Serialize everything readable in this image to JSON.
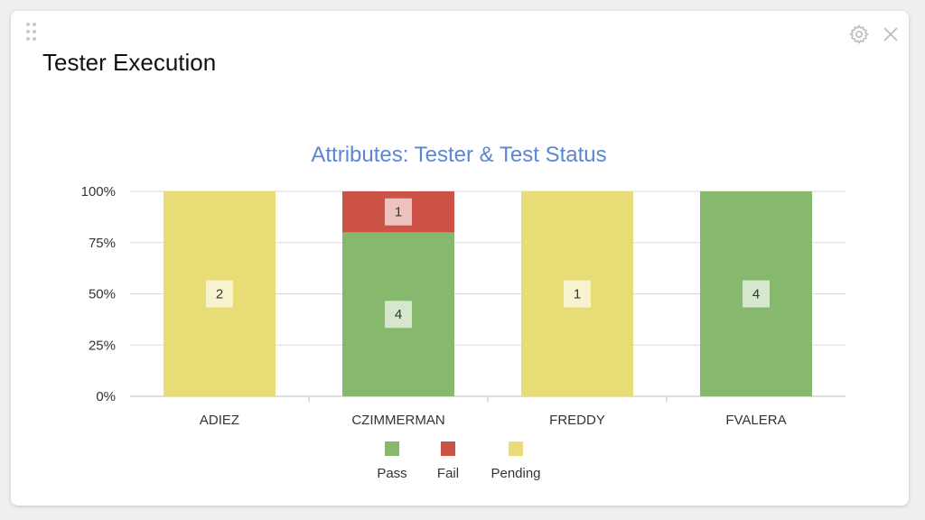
{
  "widget": {
    "title": "Tester Execution",
    "drag_icon": "drag-handle-icon",
    "settings_icon": "gear-icon",
    "close_icon": "close-icon"
  },
  "chart_data": {
    "type": "bar",
    "stacked": true,
    "normalized_percent": true,
    "title": "Attributes: Tester & Test Status",
    "categories": [
      "ADIEZ",
      "CZIMMERMAN",
      "FREDDY",
      "FVALERA"
    ],
    "series": [
      {
        "name": "Pass",
        "color": "#86b96d",
        "values": [
          0,
          4,
          0,
          4
        ]
      },
      {
        "name": "Fail",
        "color": "#cd5247",
        "values": [
          0,
          1,
          0,
          0
        ]
      },
      {
        "name": "Pending",
        "color": "#e8dc77",
        "values": [
          2,
          0,
          1,
          0
        ]
      }
    ],
    "y_ticks": [
      "0%",
      "25%",
      "50%",
      "75%",
      "100%"
    ],
    "ylim": [
      0,
      100
    ],
    "grid": true,
    "legend": "bottom-center"
  }
}
